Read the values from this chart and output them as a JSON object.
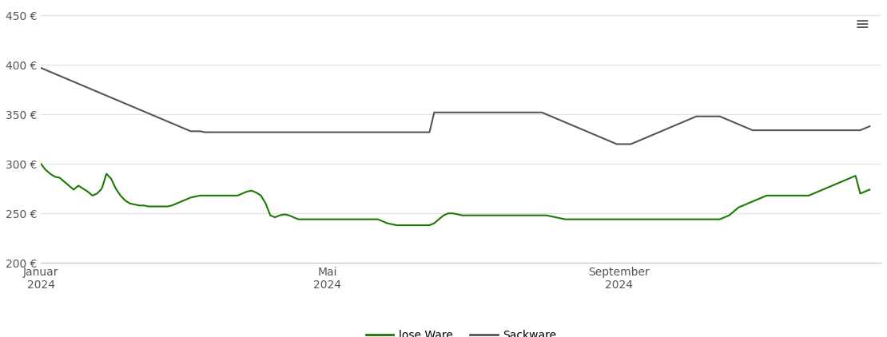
{
  "title": "",
  "background_color": "#ffffff",
  "grid_color": "#e0e0e0",
  "axis_line_color": "#cccccc",
  "ylim": [
    200,
    460
  ],
  "yticks": [
    200,
    250,
    300,
    350,
    400,
    450
  ],
  "ytick_labels": [
    "200 €",
    "250 €",
    "300 €",
    "350 €",
    "400 €",
    "450 €"
  ],
  "xtick_labels": [
    "Januar\n2024",
    "Mai\n2024",
    "September\n2024"
  ],
  "xtick_positions_months": [
    1,
    5,
    9
  ],
  "lose_ware_color": "#1a7a00",
  "sackware_color": "#555555",
  "legend_labels": [
    "lose Ware",
    "Sackware"
  ],
  "lose_ware": [
    300,
    294,
    290,
    287,
    286,
    282,
    278,
    274,
    278,
    275,
    272,
    268,
    270,
    275,
    290,
    285,
    275,
    268,
    263,
    260,
    259,
    258,
    258,
    257,
    257,
    257,
    257,
    257,
    258,
    260,
    262,
    264,
    266,
    267,
    268,
    268,
    268,
    268,
    268,
    268,
    268,
    268,
    268,
    270,
    272,
    273,
    271,
    268,
    260,
    248,
    246,
    248,
    249,
    248,
    246,
    244,
    244,
    244,
    244,
    244,
    244,
    244,
    244,
    244,
    244,
    244,
    244,
    244,
    244,
    244,
    244,
    244,
    244,
    242,
    240,
    239,
    238,
    238,
    238,
    238,
    238,
    238,
    238,
    238,
    240,
    244,
    248,
    250,
    250,
    249,
    248,
    248,
    248,
    248,
    248,
    248,
    248,
    248,
    248,
    248,
    248,
    248,
    248,
    248,
    248,
    248,
    248,
    248,
    248,
    247,
    246,
    245,
    244,
    244,
    244,
    244,
    244,
    244,
    244,
    244,
    244,
    244,
    244,
    244,
    244,
    244,
    244,
    244,
    244,
    244,
    244,
    244,
    244,
    244,
    244,
    244,
    244,
    244,
    244,
    244,
    244,
    244,
    244,
    244,
    244,
    244,
    246,
    248,
    252,
    256,
    258,
    260,
    262,
    264,
    266,
    268,
    268,
    268,
    268,
    268,
    268,
    268,
    268,
    268,
    268,
    270,
    272,
    274,
    276,
    278,
    280,
    282,
    284,
    286,
    288,
    270,
    272,
    274
  ],
  "sackware": [
    397,
    395,
    393,
    391,
    389,
    387,
    385,
    383,
    381,
    379,
    377,
    375,
    373,
    371,
    369,
    367,
    365,
    363,
    361,
    359,
    357,
    355,
    353,
    351,
    349,
    347,
    345,
    343,
    341,
    339,
    337,
    335,
    333,
    333,
    333,
    332,
    332,
    332,
    332,
    332,
    332,
    332,
    332,
    332,
    332,
    332,
    332,
    332,
    332,
    332,
    332,
    332,
    332,
    332,
    332,
    332,
    332,
    332,
    332,
    332,
    332,
    332,
    332,
    332,
    332,
    332,
    332,
    332,
    332,
    332,
    332,
    332,
    332,
    332,
    332,
    332,
    332,
    332,
    332,
    332,
    332,
    332,
    332,
    332,
    352,
    352,
    352,
    352,
    352,
    352,
    352,
    352,
    352,
    352,
    352,
    352,
    352,
    352,
    352,
    352,
    352,
    352,
    352,
    352,
    352,
    352,
    352,
    352,
    350,
    348,
    346,
    344,
    342,
    340,
    338,
    336,
    334,
    332,
    330,
    328,
    326,
    324,
    322,
    320,
    320,
    320,
    320,
    322,
    324,
    326,
    328,
    330,
    332,
    334,
    336,
    338,
    340,
    342,
    344,
    346,
    348,
    348,
    348,
    348,
    348,
    348,
    346,
    344,
    342,
    340,
    338,
    336,
    334,
    334,
    334,
    334,
    334,
    334,
    334,
    334,
    334,
    334,
    334,
    334,
    334,
    334,
    334,
    334,
    334,
    334,
    334,
    334,
    334,
    334,
    334,
    334,
    336,
    338
  ]
}
